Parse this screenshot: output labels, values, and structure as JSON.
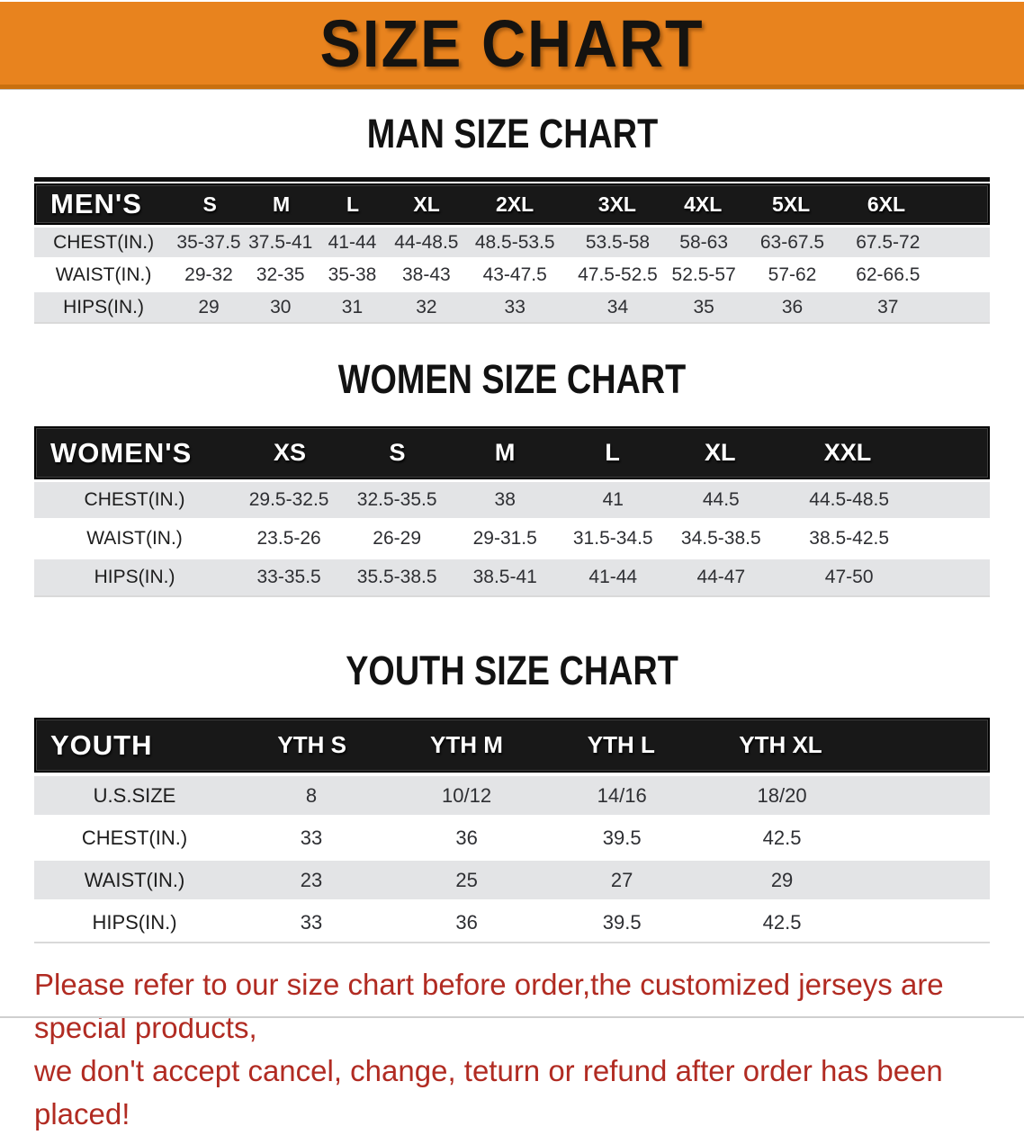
{
  "banner": {
    "title": "SIZE CHART"
  },
  "colors": {
    "banner_orange": "#E8831E",
    "banner_edge_orange": "#C9700F",
    "table_header_black": "#181818",
    "row_gray": "#E3E4E6",
    "disclaimer_red": "#B12B22"
  },
  "men": {
    "heading": "MAN SIZE CHART",
    "group_label": "MEN'S",
    "columns": [
      "S",
      "M",
      "L",
      "XL",
      "2XL",
      "3XL",
      "4XL",
      "5XL",
      "6XL"
    ],
    "rows": [
      {
        "label": "CHEST(IN.)",
        "values": [
          "35-37.5",
          "37.5-41",
          "41-44",
          "44-48.5",
          "48.5-53.5",
          "53.5-58",
          "58-63",
          "63-67.5",
          "67.5-72"
        ]
      },
      {
        "label": "WAIST(IN.)",
        "values": [
          "29-32",
          "32-35",
          "35-38",
          "38-43",
          "43-47.5",
          "47.5-52.5",
          "52.5-57",
          "57-62",
          "62-66.5"
        ]
      },
      {
        "label": "HIPS(IN.)",
        "values": [
          "29",
          "30",
          "31",
          "32",
          "33",
          "34",
          "35",
          "36",
          "37"
        ]
      }
    ]
  },
  "women": {
    "heading": "WOMEN SIZE CHART",
    "group_label": "WOMEN'S",
    "columns": [
      "XS",
      "S",
      "M",
      "L",
      "XL",
      "XXL"
    ],
    "rows": [
      {
        "label": "CHEST(IN.)",
        "values": [
          "29.5-32.5",
          "32.5-35.5",
          "38",
          "41",
          "44.5",
          "44.5-48.5"
        ]
      },
      {
        "label": "WAIST(IN.)",
        "values": [
          "23.5-26",
          "26-29",
          "29-31.5",
          "31.5-34.5",
          "34.5-38.5",
          "38.5-42.5"
        ]
      },
      {
        "label": "HIPS(IN.)",
        "values": [
          "33-35.5",
          "35.5-38.5",
          "38.5-41",
          "41-44",
          "44-47",
          "47-50"
        ]
      }
    ]
  },
  "youth": {
    "heading": "YOUTH SIZE CHART",
    "group_label": "YOUTH",
    "columns": [
      "YTH S",
      "YTH M",
      "YTH L",
      "YTH XL"
    ],
    "rows": [
      {
        "label": "U.S.SIZE",
        "values": [
          "8",
          "10/12",
          "14/16",
          "18/20"
        ]
      },
      {
        "label": "CHEST(IN.)",
        "values": [
          "33",
          "36",
          "39.5",
          "42.5"
        ]
      },
      {
        "label": "WAIST(IN.)",
        "values": [
          "23",
          "25",
          "27",
          "29"
        ]
      },
      {
        "label": "HIPS(IN.)",
        "values": [
          "33",
          "36",
          "39.5",
          "42.5"
        ]
      }
    ]
  },
  "disclaimer": {
    "line1": "Please refer to our size chart before order,the customized jerseys are special products,",
    "line2": "we don't accept cancel, change, teturn or refund after order has been placed!"
  }
}
